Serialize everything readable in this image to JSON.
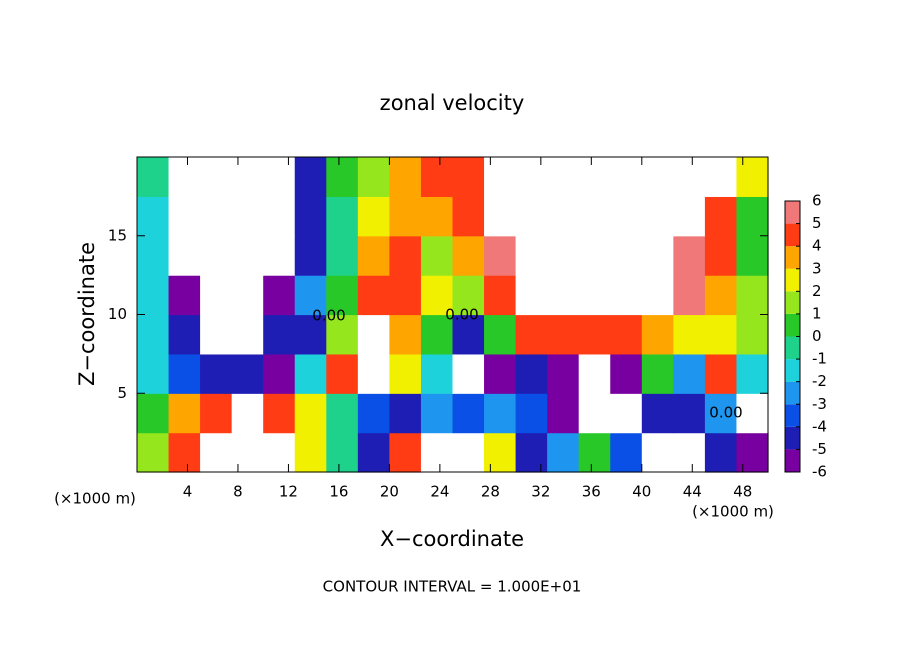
{
  "chart_data": {
    "type": "contour",
    "title": "zonal velocity",
    "xlabel": "X−coordinate",
    "ylabel": "Z−coordinate",
    "x_unit_label": "(×1000 m)",
    "footer": "CONTOUR INTERVAL = 1.000E+01",
    "contour_labels": [
      "0.00",
      "0.00",
      "0.00"
    ],
    "xlim": [
      0,
      50
    ],
    "ylim": [
      0,
      20
    ],
    "xticks": [
      4,
      8,
      12,
      16,
      20,
      24,
      28,
      32,
      36,
      40,
      44,
      48
    ],
    "yticks": [
      5,
      10,
      15
    ],
    "levels": [
      -6,
      -5,
      -4,
      -3,
      -2,
      -1,
      0,
      1,
      2,
      3,
      4,
      5,
      6
    ],
    "colors": [
      "#7800a0",
      "#1e1eb4",
      "#0a50e6",
      "#1e96f0",
      "#1ed2dc",
      "#1ed28c",
      "#28c828",
      "#96e61e",
      "#f0f000",
      "#ffa500",
      "#ff3c14",
      "#f07878"
    ],
    "x": [
      1.25,
      3.75,
      6.25,
      8.75,
      11.25,
      13.75,
      16.25,
      18.75,
      21.25,
      23.75,
      26.25,
      28.75,
      31.25,
      33.75,
      36.25,
      38.75,
      41.25,
      43.75,
      46.25,
      48.75
    ],
    "y": [
      1.25,
      3.75,
      6.25,
      8.75,
      11.25,
      13.75,
      16.25,
      18.75
    ],
    "z": [
      [
        2,
        5,
        8,
        8,
        7,
        3,
        0,
        -4.5,
        5,
        7,
        7,
        3,
        -4.5,
        -2,
        0.5,
        -3,
        -7,
        -7,
        -4,
        -5
      ],
      [
        1,
        3.5,
        5,
        7,
        5,
        3,
        0,
        -3,
        -4,
        -2.5,
        -3,
        -2,
        -3.5,
        -5,
        -7,
        -7,
        -4,
        -4.5,
        -2,
        -7
      ],
      [
        -1.5,
        -3,
        -4,
        -4.5,
        -5.5,
        -1,
        4.5,
        7,
        3,
        -1,
        -7,
        -6,
        -4,
        -5,
        -7,
        -6,
        0.5,
        -2,
        4.5,
        -1
      ],
      [
        -1,
        -4.5,
        -7,
        -7,
        -4.5,
        -4,
        2,
        7,
        4,
        1,
        -4,
        1,
        4.5,
        5,
        5,
        4.5,
        4,
        3,
        2.5,
        2
      ],
      [
        -1,
        -5,
        -8,
        -8,
        -6,
        -2,
        1,
        4.5,
        5,
        3,
        2,
        4.5,
        6.5,
        7,
        7,
        7,
        7,
        6,
        4,
        2
      ],
      [
        -1.5,
        -6.5,
        -8,
        -8,
        -8,
        -4,
        0,
        4,
        4.5,
        2,
        3.5,
        5.5,
        7.5,
        7.5,
        7.5,
        7.5,
        7.5,
        6,
        4.5,
        1
      ],
      [
        -1,
        -7,
        -8,
        -8,
        -8,
        -4.5,
        0,
        2.5,
        4,
        4,
        5,
        6.5,
        8,
        8,
        8,
        8,
        8,
        8,
        5,
        1
      ],
      [
        0,
        -7,
        -7,
        -8,
        -8,
        -4,
        0.5,
        2,
        4,
        4.5,
        5,
        7,
        8,
        8,
        8,
        8,
        8,
        8,
        6.5,
        3
      ]
    ]
  }
}
